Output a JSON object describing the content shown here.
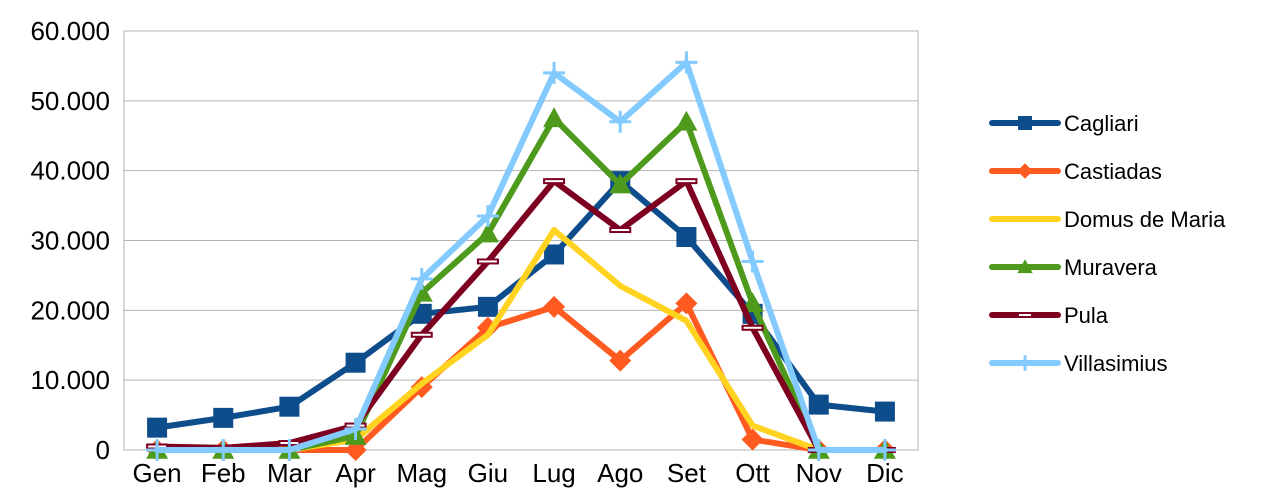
{
  "chart_data": {
    "type": "line",
    "title": "",
    "xlabel": "",
    "ylabel": "",
    "categories": [
      "Gen",
      "Feb",
      "Mar",
      "Apr",
      "Mag",
      "Giu",
      "Lug",
      "Ago",
      "Set",
      "Ott",
      "Nov",
      "Dic"
    ],
    "ylim": [
      0,
      60000
    ],
    "yticks": [
      {
        "value": 0,
        "label": "0"
      },
      {
        "value": 10000,
        "label": "10.000"
      },
      {
        "value": 20000,
        "label": "20.000"
      },
      {
        "value": 30000,
        "label": "30.000"
      },
      {
        "value": 40000,
        "label": "40.000"
      },
      {
        "value": 50000,
        "label": "50.000"
      },
      {
        "value": 60000,
        "label": "60.000"
      }
    ],
    "grid": "horizontal",
    "legend_position": "right",
    "series": [
      {
        "name": "Cagliari",
        "color": "#0e4d8c",
        "marker": "square",
        "values": [
          3200,
          4600,
          6200,
          12500,
          19500,
          20500,
          28000,
          38500,
          30500,
          19500,
          6500,
          5500
        ]
      },
      {
        "name": "Castiadas",
        "color": "#ff5a1f",
        "marker": "diamond",
        "values": [
          0,
          0,
          0,
          0,
          9000,
          17500,
          20500,
          12800,
          21000,
          1500,
          0,
          0
        ]
      },
      {
        "name": "Domus de Maria",
        "color": "#ffd320",
        "marker": "none",
        "values": [
          0,
          0,
          0,
          1500,
          9500,
          16500,
          31500,
          23500,
          18500,
          3500,
          0,
          0
        ]
      },
      {
        "name": "Muravera",
        "color": "#4e9a1c",
        "marker": "triangle",
        "values": [
          0,
          0,
          0,
          2000,
          22500,
          31000,
          47500,
          38000,
          47000,
          21000,
          0,
          0
        ]
      },
      {
        "name": "Pula",
        "color": "#7e0021",
        "marker": "bar",
        "values": [
          500,
          300,
          1000,
          3500,
          16500,
          27000,
          38500,
          31500,
          38500,
          17500,
          0,
          0
        ]
      },
      {
        "name": "Villasimius",
        "color": "#83caff",
        "marker": "plus",
        "values": [
          0,
          0,
          0,
          3000,
          24500,
          33500,
          54000,
          47000,
          55500,
          27000,
          0,
          0
        ]
      }
    ]
  }
}
